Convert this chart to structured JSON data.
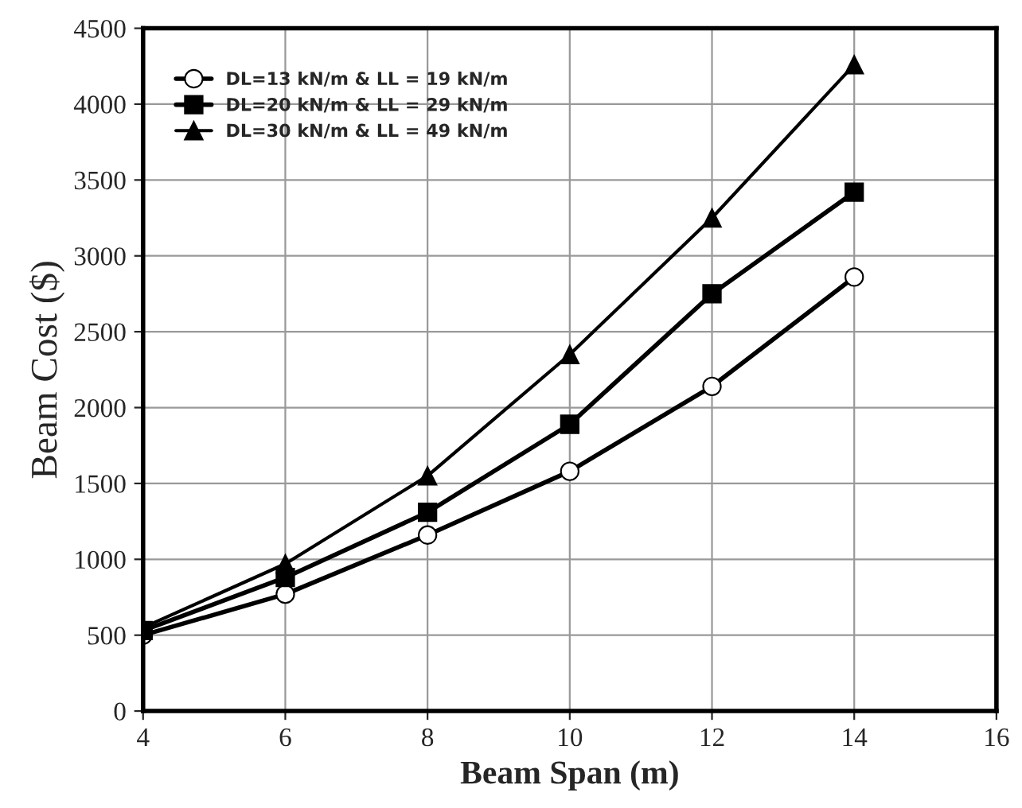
{
  "chart_data": {
    "type": "line",
    "xlabel": "Beam Span (m)",
    "ylabel": "Beam Cost ($)",
    "x": [
      4,
      6,
      8,
      10,
      12,
      14
    ],
    "series": [
      {
        "name": "DL=13 kN/m & LL = 19 kN/m",
        "color": "#000000",
        "marker": "circle",
        "values": [
          500,
          770,
          1160,
          1580,
          2140,
          2860
        ]
      },
      {
        "name": "DL=20 kN/m & LL = 29 kN/m",
        "color": "#000000",
        "marker": "square",
        "values": [
          530,
          880,
          1310,
          1890,
          2750,
          3420
        ]
      },
      {
        "name": "DL=30 kN/m & LL = 49 kN/m",
        "color": "#000000",
        "marker": "triangle",
        "values": [
          550,
          970,
          1550,
          2350,
          3250,
          4260
        ]
      }
    ],
    "xlim": [
      4,
      16
    ],
    "xticks": [
      4,
      6,
      8,
      10,
      12,
      14,
      16
    ],
    "ylim": [
      0,
      4500
    ],
    "yticks": [
      0,
      500,
      1000,
      1500,
      2000,
      2500,
      3000,
      3500,
      4000,
      4500
    ],
    "grid": true,
    "legend": "top left",
    "line_style": "solid"
  }
}
